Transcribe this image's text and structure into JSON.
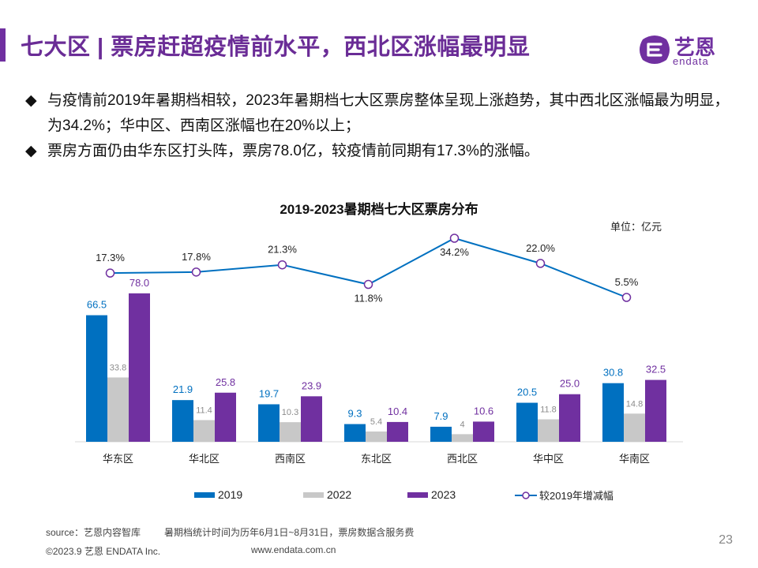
{
  "header": {
    "title": "七大区 | 票房赶超疫情前水平，西北区涨幅最明显",
    "logo_cn": "艺恩",
    "logo_en": "endata"
  },
  "bullets": {
    "symbol": "◆",
    "items": [
      "与疫情前2019年暑期档相较，2023年暑期档七大区票房整体呈现上涨趋势，其中西北区涨幅最为明显，为34.2%；华中区、西南区涨幅也在20%以上；",
      "票房方面仍由华东区打头阵，票房78.0亿，较疫情前同期有17.3%的涨幅。"
    ]
  },
  "chart_data": {
    "type": "bar",
    "title": "2019-2023暑期档七大区票房分布",
    "unit_label": "单位：亿元",
    "categories": [
      "华东区",
      "华北区",
      "西南区",
      "东北区",
      "西北区",
      "华中区",
      "华南区"
    ],
    "series": [
      {
        "name": "2019",
        "color": "#0070c0",
        "label_color": "#0070c0",
        "values": [
          66.5,
          21.9,
          19.7,
          9.3,
          7.9,
          20.5,
          30.8
        ],
        "labels": [
          "66.5",
          "21.9",
          "19.7",
          "9.3",
          "7.9",
          "20.5",
          "30.8"
        ]
      },
      {
        "name": "2022",
        "color": "#c8c8c8",
        "label_color": "#8c8c8c",
        "values": [
          33.8,
          11.4,
          10.3,
          5.4,
          4,
          11.8,
          14.8
        ],
        "labels": [
          "33.8",
          "11.4",
          "10.3",
          "5.4",
          "4",
          "11.8",
          "14.8"
        ]
      },
      {
        "name": "2023",
        "color": "#7030a0",
        "label_color": "#7030a0",
        "values": [
          78.0,
          25.8,
          23.9,
          10.4,
          10.6,
          25.0,
          32.5
        ],
        "labels": [
          "78.0",
          "25.8",
          "23.9",
          "10.4",
          "10.6",
          "25.0",
          "32.5"
        ]
      }
    ],
    "line_series": {
      "name": "较2019年增减幅",
      "color": "#0070c0",
      "values": [
        17.3,
        17.8,
        21.3,
        11.8,
        34.2,
        22.0,
        5.5
      ],
      "labels": [
        "17.3%",
        "17.8%",
        "21.3%",
        "11.8%",
        "34.2%",
        "22.0%",
        "5.5%"
      ]
    },
    "ylim": [
      0,
      80
    ],
    "line_ylim": [
      0,
      40
    ],
    "legend_position": "bottom"
  },
  "footer": {
    "source": "source：艺恩内容智库",
    "note": "暑期档统计时间为历年6月1日~8月31日，票房数据含服务费",
    "copyright": "©2023.9 艺恩 ENDATA Inc.",
    "url": "www.endata.com.cn",
    "page": "23"
  }
}
